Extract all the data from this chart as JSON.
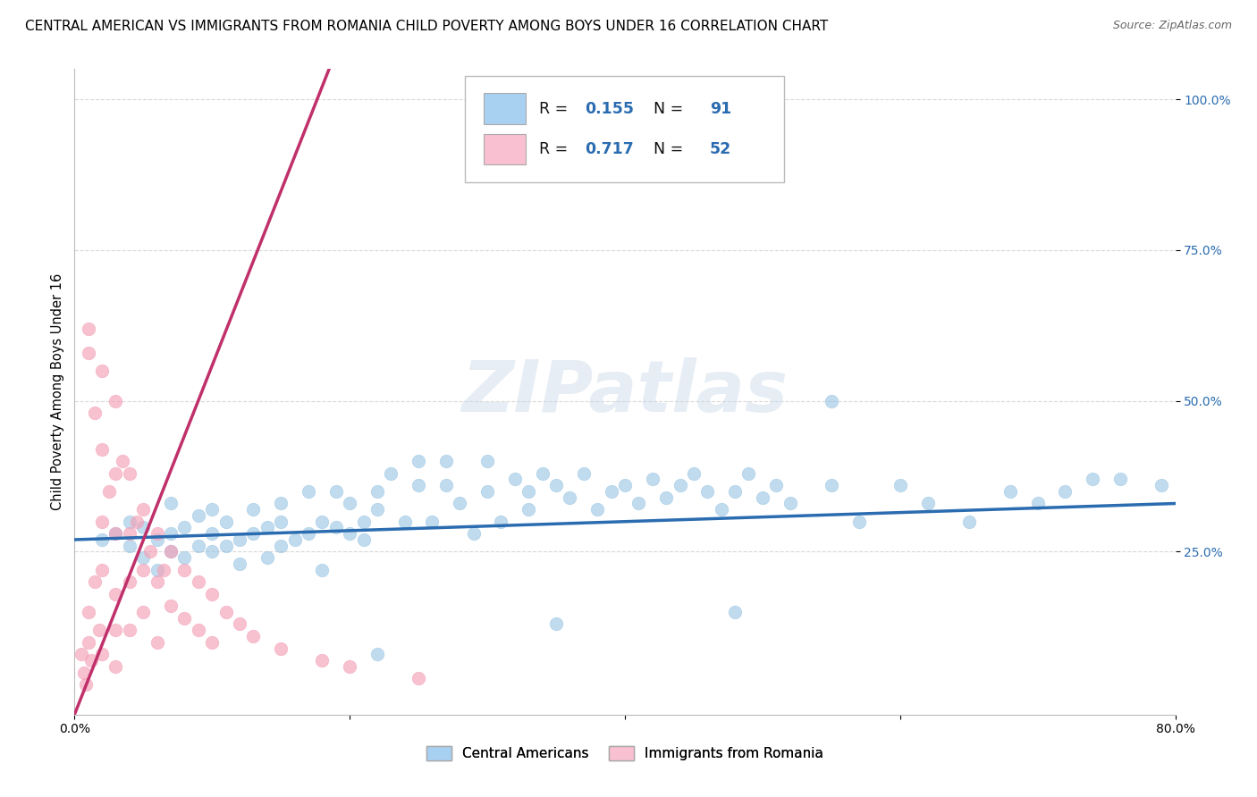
{
  "title": "CENTRAL AMERICAN VS IMMIGRANTS FROM ROMANIA CHILD POVERTY AMONG BOYS UNDER 16 CORRELATION CHART",
  "source": "Source: ZipAtlas.com",
  "ylabel": "Child Poverty Among Boys Under 16",
  "xlim": [
    0.0,
    0.8
  ],
  "ylim": [
    -0.02,
    1.05
  ],
  "ytick_positions": [
    0.25,
    0.5,
    0.75,
    1.0
  ],
  "ytick_labels": [
    "25.0%",
    "50.0%",
    "75.0%",
    "100.0%"
  ],
  "xtick_positions": [
    0.0,
    0.2,
    0.4,
    0.6,
    0.8
  ],
  "xtick_labels": [
    "0.0%",
    "",
    "",
    "",
    "80.0%"
  ],
  "blue_color": "#8fbfe0",
  "pink_color": "#f4a0b8",
  "blue_line_color": "#2b6cb0",
  "pink_line_color": "#c0306a",
  "legend_box_blue": "#a8d0f0",
  "legend_box_pink": "#f8c0d0",
  "R_blue": 0.155,
  "N_blue": 91,
  "R_pink": 0.717,
  "N_pink": 52,
  "watermark": "ZIPatlas",
  "legend_label_blue": "Central Americans",
  "legend_label_pink": "Immigrants from Romania",
  "blue_scatter_x": [
    0.02,
    0.03,
    0.04,
    0.04,
    0.05,
    0.05,
    0.06,
    0.06,
    0.07,
    0.07,
    0.07,
    0.08,
    0.08,
    0.09,
    0.09,
    0.1,
    0.1,
    0.1,
    0.11,
    0.11,
    0.12,
    0.12,
    0.13,
    0.13,
    0.14,
    0.14,
    0.15,
    0.15,
    0.15,
    0.16,
    0.17,
    0.17,
    0.18,
    0.18,
    0.19,
    0.19,
    0.2,
    0.2,
    0.21,
    0.21,
    0.22,
    0.22,
    0.23,
    0.24,
    0.25,
    0.25,
    0.26,
    0.27,
    0.27,
    0.28,
    0.29,
    0.3,
    0.3,
    0.31,
    0.32,
    0.33,
    0.33,
    0.34,
    0.35,
    0.36,
    0.37,
    0.38,
    0.39,
    0.4,
    0.41,
    0.42,
    0.43,
    0.44,
    0.45,
    0.46,
    0.47,
    0.48,
    0.49,
    0.5,
    0.51,
    0.52,
    0.55,
    0.57,
    0.6,
    0.62,
    0.65,
    0.68,
    0.7,
    0.72,
    0.74,
    0.55,
    0.48,
    0.35,
    0.22,
    0.76,
    0.79
  ],
  "blue_scatter_y": [
    0.27,
    0.28,
    0.26,
    0.3,
    0.24,
    0.29,
    0.22,
    0.27,
    0.25,
    0.28,
    0.33,
    0.24,
    0.29,
    0.26,
    0.31,
    0.25,
    0.28,
    0.32,
    0.26,
    0.3,
    0.27,
    0.23,
    0.28,
    0.32,
    0.24,
    0.29,
    0.3,
    0.26,
    0.33,
    0.27,
    0.28,
    0.35,
    0.22,
    0.3,
    0.29,
    0.35,
    0.28,
    0.33,
    0.3,
    0.27,
    0.35,
    0.32,
    0.38,
    0.3,
    0.36,
    0.4,
    0.3,
    0.36,
    0.4,
    0.33,
    0.28,
    0.35,
    0.4,
    0.3,
    0.37,
    0.35,
    0.32,
    0.38,
    0.36,
    0.34,
    0.38,
    0.32,
    0.35,
    0.36,
    0.33,
    0.37,
    0.34,
    0.36,
    0.38,
    0.35,
    0.32,
    0.35,
    0.38,
    0.34,
    0.36,
    0.33,
    0.36,
    0.3,
    0.36,
    0.33,
    0.3,
    0.35,
    0.33,
    0.35,
    0.37,
    0.5,
    0.15,
    0.13,
    0.08,
    0.37,
    0.36
  ],
  "pink_scatter_x": [
    0.005,
    0.007,
    0.008,
    0.01,
    0.01,
    0.01,
    0.01,
    0.012,
    0.015,
    0.015,
    0.018,
    0.02,
    0.02,
    0.02,
    0.02,
    0.02,
    0.025,
    0.03,
    0.03,
    0.03,
    0.03,
    0.03,
    0.03,
    0.035,
    0.04,
    0.04,
    0.04,
    0.04,
    0.045,
    0.05,
    0.05,
    0.05,
    0.055,
    0.06,
    0.06,
    0.06,
    0.065,
    0.07,
    0.07,
    0.08,
    0.08,
    0.09,
    0.09,
    0.1,
    0.1,
    0.11,
    0.12,
    0.13,
    0.15,
    0.18,
    0.2,
    0.25
  ],
  "pink_scatter_y": [
    0.08,
    0.05,
    0.03,
    0.58,
    0.62,
    0.15,
    0.1,
    0.07,
    0.48,
    0.2,
    0.12,
    0.55,
    0.42,
    0.3,
    0.22,
    0.08,
    0.35,
    0.5,
    0.38,
    0.28,
    0.18,
    0.12,
    0.06,
    0.4,
    0.38,
    0.28,
    0.2,
    0.12,
    0.3,
    0.32,
    0.22,
    0.15,
    0.25,
    0.28,
    0.2,
    0.1,
    0.22,
    0.25,
    0.16,
    0.22,
    0.14,
    0.2,
    0.12,
    0.18,
    0.1,
    0.15,
    0.13,
    0.11,
    0.09,
    0.07,
    0.06,
    0.04
  ],
  "pink_line_x": [
    0.0,
    0.185
  ],
  "pink_line_y": [
    -0.02,
    1.05
  ],
  "blue_line_x": [
    0.0,
    0.8
  ],
  "blue_line_y": [
    0.27,
    0.33
  ],
  "grid_color": "#d8d8d8",
  "bg_color": "#ffffff",
  "title_fontsize": 11,
  "axis_label_fontsize": 10.5
}
